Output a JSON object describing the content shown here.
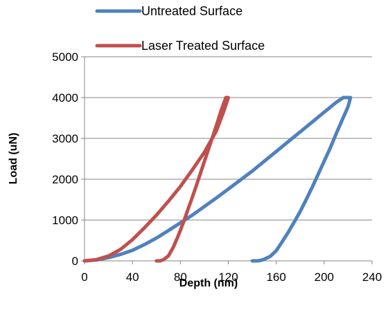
{
  "chart_data": {
    "type": "line",
    "title": "",
    "xlabel": "Depth (nm)",
    "ylabel": "Load (uN)",
    "xlim": [
      0,
      240
    ],
    "ylim": [
      0,
      5000
    ],
    "xticks": [
      0,
      40,
      80,
      120,
      160,
      200,
      240
    ],
    "yticks": [
      0,
      1000,
      2000,
      3000,
      4000,
      5000
    ],
    "grid": "horizontal",
    "legend_position": "top",
    "series": [
      {
        "name": "Untreated Surface",
        "color": "#4F81BD",
        "x": [
          0,
          10,
          20,
          30,
          40,
          50,
          60,
          70,
          80,
          90,
          100,
          110,
          120,
          130,
          140,
          150,
          160,
          170,
          180,
          190,
          200,
          210,
          216,
          222,
          220,
          215,
          210,
          205,
          200,
          195,
          190,
          185,
          180,
          175,
          170,
          165,
          160,
          155,
          150,
          147,
          144,
          140
        ],
        "y": [
          0,
          20,
          80,
          160,
          260,
          400,
          560,
          740,
          930,
          1120,
          1330,
          1540,
          1760,
          1980,
          2200,
          2440,
          2680,
          2920,
          3160,
          3400,
          3640,
          3880,
          4000,
          4000,
          3780,
          3450,
          3110,
          2760,
          2440,
          2120,
          1800,
          1500,
          1210,
          950,
          700,
          470,
          250,
          110,
          40,
          10,
          0,
          0
        ]
      },
      {
        "name": "Laser Treated Surface",
        "color": "#C0504D",
        "x": [
          0,
          10,
          20,
          30,
          40,
          50,
          60,
          70,
          80,
          90,
          100,
          110,
          116,
          120,
          118,
          114,
          110,
          106,
          102,
          98,
          94,
          90,
          86,
          82,
          78,
          74,
          70,
          66,
          63,
          60
        ],
        "y": [
          0,
          30,
          120,
          280,
          520,
          810,
          1120,
          1460,
          1820,
          2230,
          2660,
          3180,
          3650,
          4000,
          4000,
          3680,
          3310,
          2960,
          2610,
          2260,
          1900,
          1560,
          1230,
          900,
          600,
          330,
          120,
          30,
          0,
          0
        ]
      }
    ]
  }
}
